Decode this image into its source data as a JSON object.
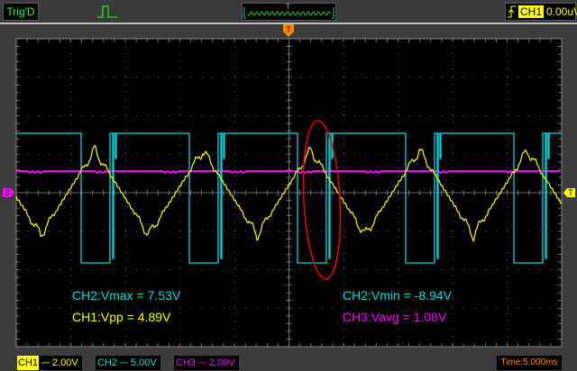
{
  "header": {
    "trigger_status": "Trig'D",
    "pulse_icon": "pulse-icon",
    "trigger_marker": "T",
    "trigger_source": "CH1",
    "trigger_level": "0.00uV",
    "trigger_edge_icon": "rising-edge-icon"
  },
  "markers": {
    "ch3_ground": "3",
    "trigger_level": "T",
    "trigger_position": "T"
  },
  "measurements": {
    "ch2_vmax": "CH2:Vmax = 7.53V",
    "ch1_vpp": "CH1:Vpp = 4.89V",
    "ch2_vmin": "CH2:Vmin = -8.94V",
    "ch3_vavg": "CH3:Vavg = 1.08V"
  },
  "channels": [
    {
      "name": "CH1",
      "scale": "2.00V",
      "color": "#ffff00"
    },
    {
      "name": "CH2",
      "scale": "5.00V",
      "color": "#00e0e0"
    },
    {
      "name": "CH3",
      "scale": "2.00V",
      "color": "#ff00ff"
    }
  ],
  "timebase": "Time:5.000ms",
  "colors": {
    "annotation": "#ff0000",
    "trigger": "#ff8800",
    "time": "#ff8800"
  }
}
